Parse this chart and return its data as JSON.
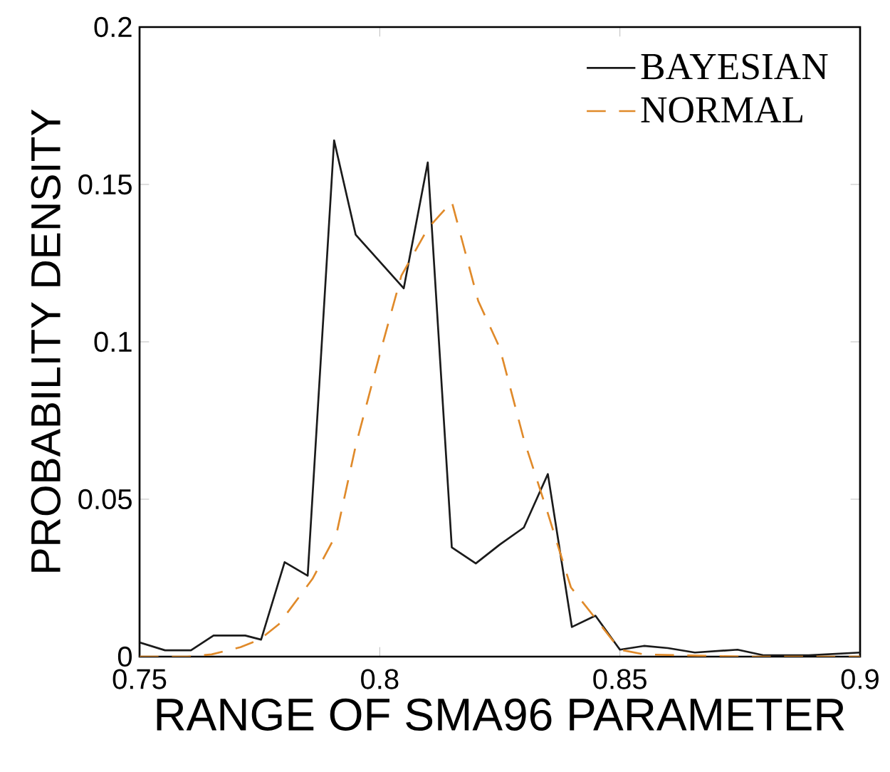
{
  "chart_data": {
    "type": "line",
    "xlabel": "RANGE OF SMA96 PARAMETER",
    "ylabel": "PROBABILITY DENSITY",
    "xlim": [
      0.75,
      0.9
    ],
    "ylim": [
      0,
      0.2
    ],
    "xticks": [
      0.75,
      0.8,
      0.85,
      0.9
    ],
    "yticks": [
      0,
      0.05,
      0.1,
      0.15,
      0.2
    ],
    "legend": "top right",
    "series": [
      {
        "name": "BAYESIAN",
        "color": "#1a1a1a",
        "line_style": "solid",
        "x": [
          0.75,
          0.7553,
          0.7607,
          0.7654,
          0.772,
          0.7753,
          0.7802,
          0.785,
          0.7905,
          0.795,
          0.805,
          0.81,
          0.815,
          0.82,
          0.825,
          0.83,
          0.835,
          0.84,
          0.8449,
          0.85,
          0.855,
          0.86,
          0.8656,
          0.8745,
          0.88,
          0.8893,
          0.9
        ],
        "values": [
          0.0045,
          0.002,
          0.002,
          0.0067,
          0.0067,
          0.0054,
          0.03,
          0.0257,
          0.164,
          0.134,
          0.117,
          0.157,
          0.0347,
          0.0296,
          0.0356,
          0.041,
          0.058,
          0.0094,
          0.013,
          0.0022,
          0.0034,
          0.0027,
          0.0013,
          0.0022,
          0.0004,
          0.0004,
          0.0013
        ]
      },
      {
        "name": "NORMAL",
        "color": "#e08a2a",
        "line_style": "dashed",
        "x": [
          0.75,
          0.76,
          0.765,
          0.771,
          0.775,
          0.779,
          0.786,
          0.791,
          0.795,
          0.8,
          0.8045,
          0.81,
          0.815,
          0.8205,
          0.825,
          0.83,
          0.835,
          0.8398,
          0.8454,
          0.85,
          0.855,
          0.8633,
          0.875,
          0.9
        ],
        "values": [
          0,
          0,
          0.0007,
          0.003,
          0.0054,
          0.0103,
          0.0247,
          0.039,
          0.067,
          0.096,
          0.121,
          0.136,
          0.1445,
          0.113,
          0.098,
          0.069,
          0.0455,
          0.022,
          0.0112,
          0.0022,
          0.0007,
          0.0004,
          0,
          0
        ]
      }
    ]
  }
}
